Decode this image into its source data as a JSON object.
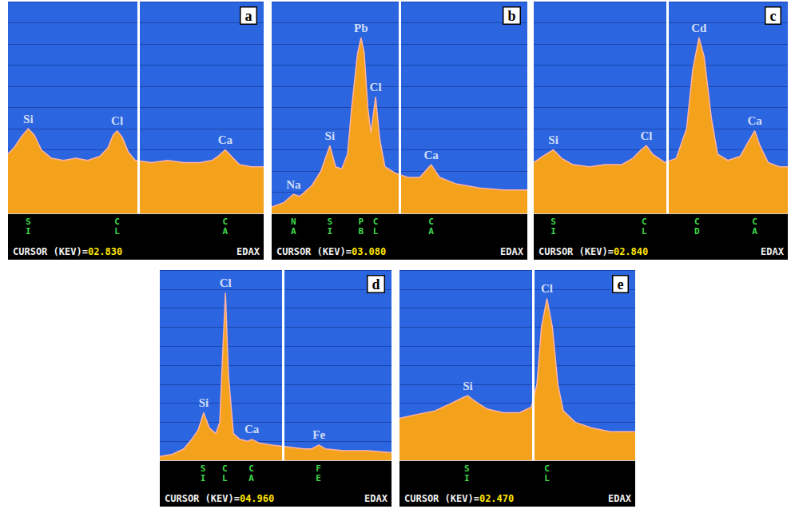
{
  "chart_data": [
    {
      "type": "area",
      "title": "a",
      "color": "#f4a21c",
      "grid": true,
      "tick_labels": "x",
      "xlim": [
        1.54,
        4.07
      ],
      "ylim": [
        0,
        100
      ],
      "yticks": [
        0,
        10,
        20,
        30,
        40,
        50,
        60,
        70,
        80,
        90,
        100
      ],
      "xticks": [
        {
          "value": 1.74,
          "label": "SI"
        },
        {
          "value": 2.62,
          "label": "CL"
        },
        {
          "value": 3.69,
          "label": "CA"
        }
      ],
      "x": [
        1.54,
        1.6,
        1.67,
        1.74,
        1.8,
        1.87,
        1.97,
        2.09,
        2.21,
        2.33,
        2.45,
        2.53,
        2.58,
        2.62,
        2.67,
        2.73,
        2.8,
        2.96,
        3.12,
        3.28,
        3.44,
        3.56,
        3.62,
        3.69,
        3.75,
        3.83,
        3.95,
        4.07
      ],
      "values": [
        28,
        31,
        36,
        40,
        37,
        30,
        26,
        25,
        26,
        25,
        27,
        31,
        37,
        39,
        36,
        29,
        25,
        24,
        25,
        24,
        24,
        25,
        27,
        30,
        27,
        23,
        22,
        22
      ],
      "annotations": [
        {
          "text": "Si",
          "x": 1.74
        },
        {
          "text": "Cl",
          "x": 2.62
        },
        {
          "text": "Ca",
          "x": 3.69
        }
      ],
      "cursor_text": "CURSOR (KEV)=",
      "cursor": {
        "value": 2.83,
        "label": "02.830"
      },
      "brand": "EDAX"
    },
    {
      "type": "area",
      "title": "b",
      "color": "#f4a21c",
      "grid": true,
      "tick_labels": "x",
      "xlim": [
        0.62,
        5.54
      ],
      "ylim": [
        0,
        100
      ],
      "yticks": [
        0,
        10,
        20,
        30,
        40,
        50,
        60,
        70,
        80,
        90,
        100
      ],
      "xticks": [
        {
          "value": 1.04,
          "label": "NA"
        },
        {
          "value": 1.74,
          "label": "SI"
        },
        {
          "value": 2.34,
          "label": "PB"
        },
        {
          "value": 2.62,
          "label": "CL"
        },
        {
          "value": 3.69,
          "label": "CA"
        }
      ],
      "x": [
        0.62,
        0.85,
        1.04,
        1.16,
        1.39,
        1.57,
        1.74,
        1.85,
        1.97,
        2.08,
        2.16,
        2.27,
        2.34,
        2.4,
        2.47,
        2.53,
        2.62,
        2.7,
        2.8,
        3.0,
        3.24,
        3.47,
        3.69,
        3.85,
        4.16,
        4.62,
        5.08,
        5.54
      ],
      "values": [
        3,
        5,
        9,
        8,
        13,
        20,
        32,
        22,
        21,
        28,
        50,
        75,
        83,
        76,
        50,
        38,
        55,
        35,
        22,
        19,
        17,
        17,
        23,
        17,
        14,
        12,
        11,
        11
      ],
      "annotations": [
        {
          "text": "Na",
          "x": 1.04
        },
        {
          "text": "Si",
          "x": 1.74
        },
        {
          "text": "Pb",
          "x": 2.34
        },
        {
          "text": "Cl",
          "x": 2.62
        },
        {
          "text": "Ca",
          "x": 3.69
        }
      ],
      "cursor_text": "CURSOR (KEV)=",
      "cursor": {
        "value": 3.08,
        "label": "03.080"
      },
      "brand": "EDAX"
    },
    {
      "type": "area",
      "title": "c",
      "color": "#f4a21c",
      "grid": true,
      "tick_labels": "x",
      "xlim": [
        1.55,
        4.01
      ],
      "ylim": [
        0,
        100
      ],
      "yticks": [
        0,
        10,
        20,
        30,
        40,
        50,
        60,
        70,
        80,
        90,
        100
      ],
      "xticks": [
        {
          "value": 1.74,
          "label": "SI"
        },
        {
          "value": 2.62,
          "label": "CL"
        },
        {
          "value": 3.13,
          "label": "CD"
        },
        {
          "value": 3.69,
          "label": "CA"
        }
      ],
      "x": [
        1.55,
        1.64,
        1.74,
        1.82,
        1.93,
        2.09,
        2.24,
        2.4,
        2.51,
        2.59,
        2.64,
        2.7,
        2.82,
        2.93,
        3.03,
        3.09,
        3.15,
        3.2,
        3.27,
        3.33,
        3.43,
        3.55,
        3.63,
        3.69,
        3.74,
        3.82,
        3.93,
        4.01
      ],
      "values": [
        24,
        27,
        30,
        26,
        23,
        22,
        23,
        23,
        26,
        30,
        32,
        28,
        24,
        26,
        40,
        68,
        83,
        74,
        45,
        28,
        25,
        27,
        34,
        39,
        32,
        24,
        22,
        22
      ],
      "annotations": [
        {
          "text": "Si",
          "x": 1.74
        },
        {
          "text": "Cl",
          "x": 2.64
        },
        {
          "text": "Cd",
          "x": 3.15
        },
        {
          "text": "Ca",
          "x": 3.69
        }
      ],
      "cursor_text": "CURSOR (KEV)=",
      "cursor": {
        "value": 2.84,
        "label": "02.840"
      },
      "brand": "EDAX"
    },
    {
      "type": "area",
      "title": "d",
      "color": "#f4a21c",
      "grid": true,
      "tick_labels": "x",
      "xlim": [
        0,
        9.35
      ],
      "ylim": [
        0,
        100
      ],
      "yticks": [
        0,
        10,
        20,
        30,
        40,
        50,
        60,
        70,
        80,
        90,
        100
      ],
      "xticks": [
        {
          "value": 1.74,
          "label": "SI"
        },
        {
          "value": 2.62,
          "label": "CL"
        },
        {
          "value": 3.69,
          "label": "CA"
        },
        {
          "value": 6.4,
          "label": "FE"
        }
      ],
      "x": [
        0.0,
        0.48,
        0.97,
        1.29,
        1.55,
        1.77,
        2.0,
        2.26,
        2.42,
        2.55,
        2.65,
        2.77,
        2.97,
        3.23,
        3.55,
        3.71,
        4.03,
        4.52,
        5.16,
        5.81,
        6.13,
        6.42,
        6.68,
        7.42,
        8.39,
        9.35
      ],
      "values": [
        2,
        3,
        6,
        11,
        16,
        25,
        17,
        14,
        20,
        60,
        88,
        45,
        14,
        11,
        10,
        11,
        9,
        8,
        7,
        6,
        6,
        8,
        6,
        5,
        5,
        4
      ],
      "annotations": [
        {
          "text": "Si",
          "x": 1.77
        },
        {
          "text": "Cl",
          "x": 2.65
        },
        {
          "text": "Ca",
          "x": 3.71
        },
        {
          "text": "Fe",
          "x": 6.42
        }
      ],
      "cursor_text": "CURSOR (KEV)=",
      "cursor": {
        "value": 4.96,
        "label": "04.960"
      },
      "brand": "EDAX"
    },
    {
      "type": "area",
      "title": "e",
      "color": "#f4a21c",
      "grid": true,
      "tick_labels": "x",
      "xlim": [
        1.0,
        3.59
      ],
      "ylim": [
        0,
        100
      ],
      "yticks": [
        0,
        10,
        20,
        30,
        40,
        50,
        60,
        70,
        80,
        90,
        100
      ],
      "xticks": [
        {
          "value": 1.74,
          "label": "SI"
        },
        {
          "value": 2.62,
          "label": "CL"
        }
      ],
      "x": [
        1.0,
        1.18,
        1.39,
        1.57,
        1.7,
        1.75,
        1.83,
        1.96,
        2.14,
        2.32,
        2.45,
        2.51,
        2.56,
        2.62,
        2.68,
        2.74,
        2.8,
        2.93,
        3.11,
        3.32,
        3.59
      ],
      "values": [
        22,
        24,
        26,
        30,
        33,
        34,
        31,
        27,
        25,
        25,
        28,
        40,
        70,
        85,
        70,
        40,
        26,
        20,
        17,
        15,
        15
      ],
      "annotations": [
        {
          "text": "Si",
          "x": 1.75
        },
        {
          "text": "Cl",
          "x": 2.62
        }
      ],
      "cursor_text": "CURSOR (KEV)=",
      "cursor": {
        "value": 2.47,
        "label": "02.470"
      },
      "brand": "EDAX"
    }
  ]
}
